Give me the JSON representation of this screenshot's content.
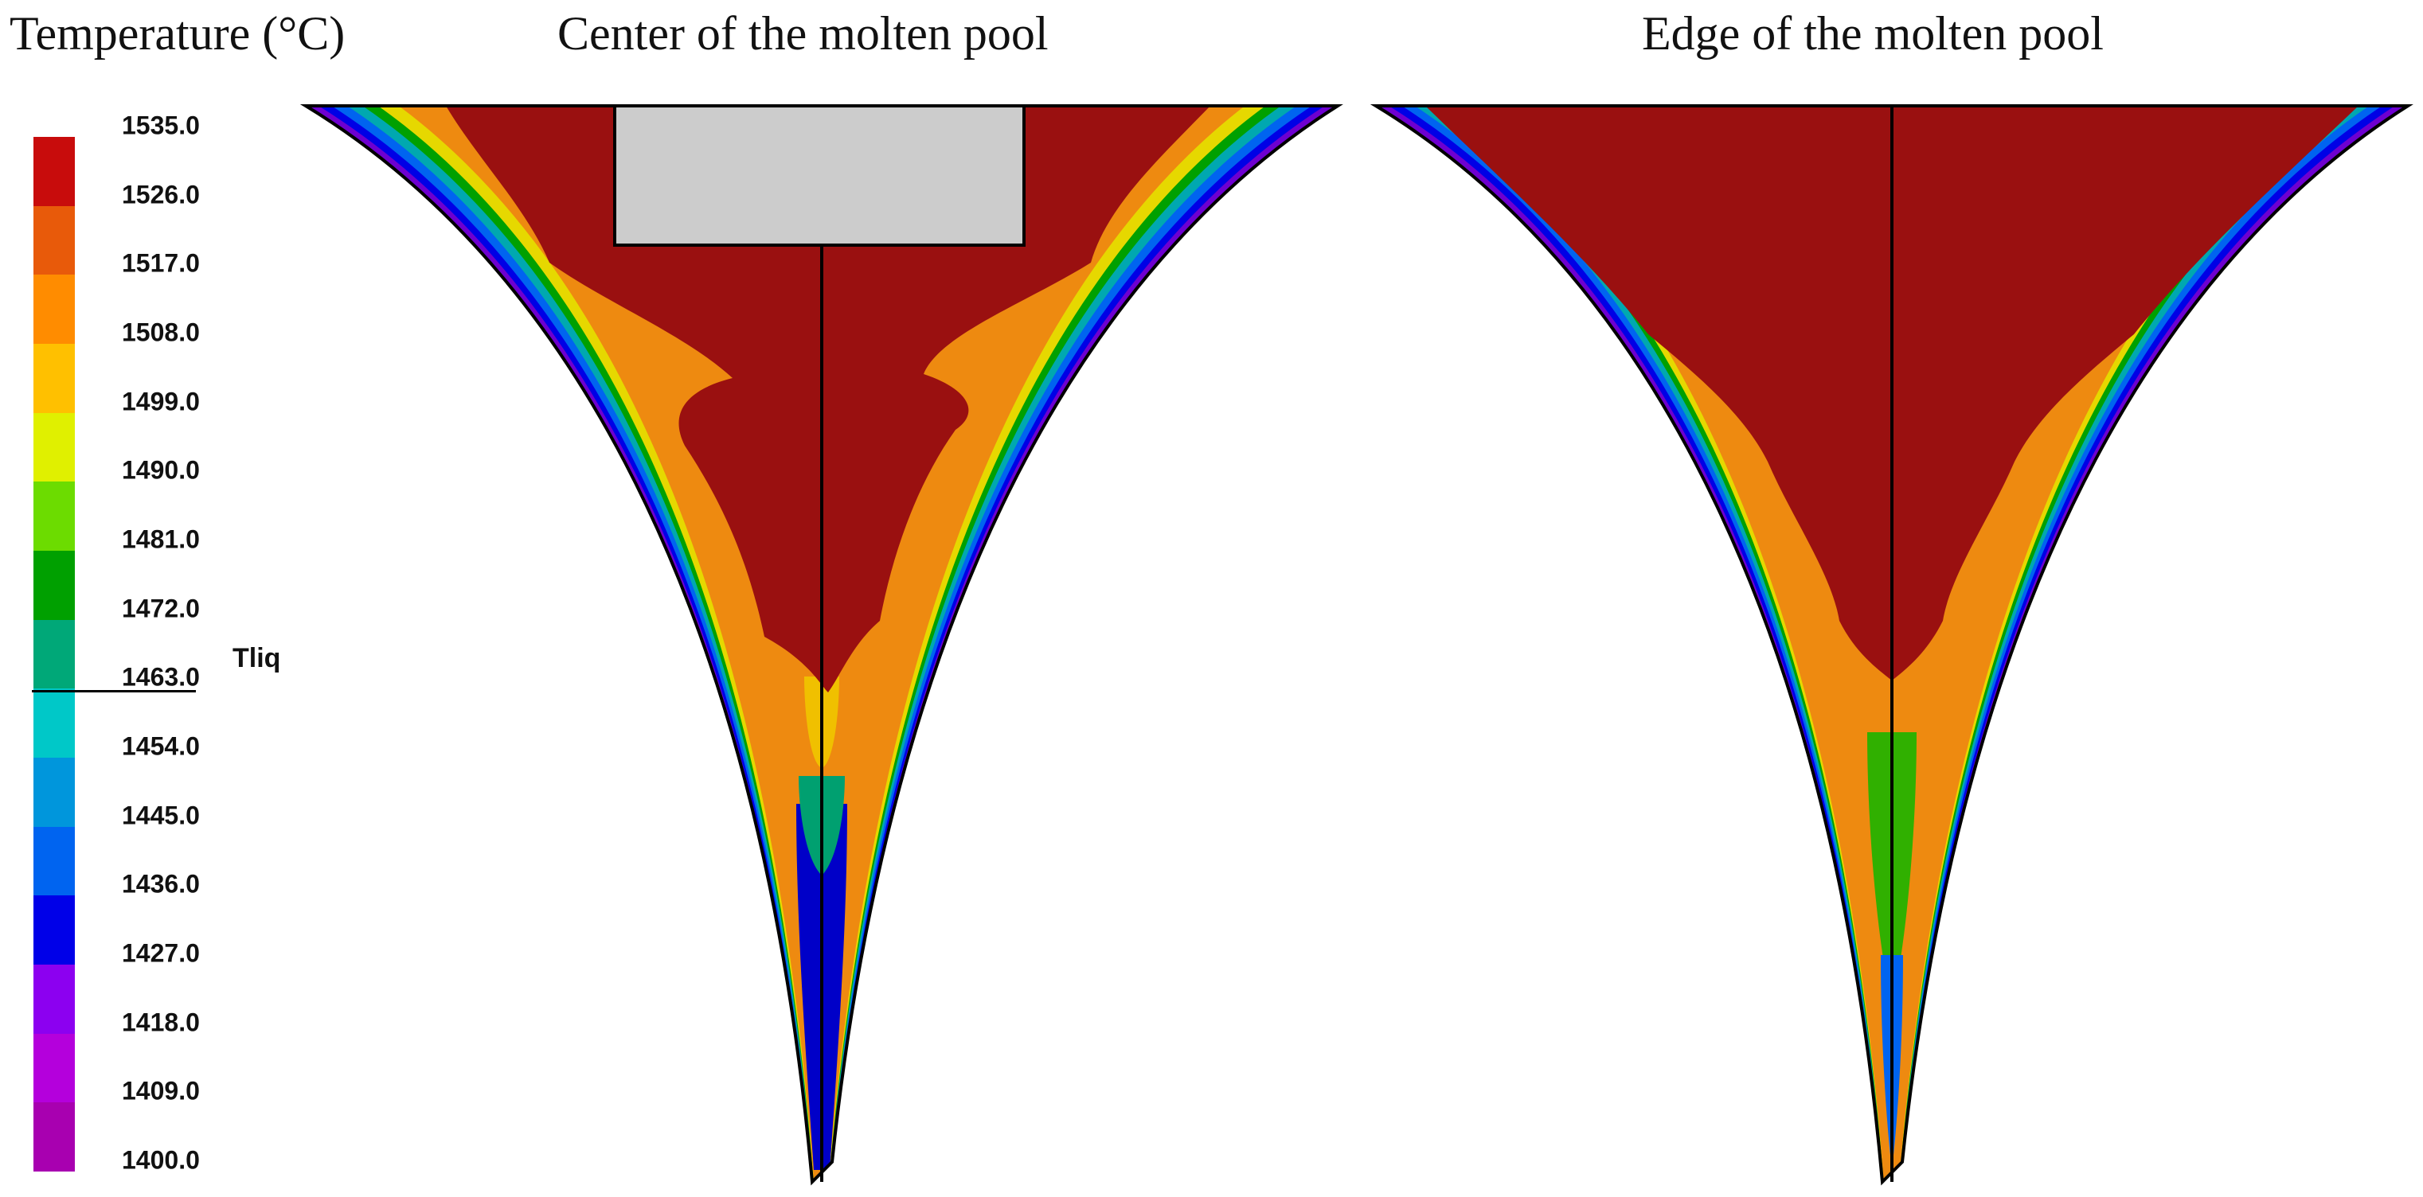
{
  "legend": {
    "title": "Temperature (°C)",
    "ticks": [
      "1535.0",
      "1526.0",
      "1517.0",
      "1508.0",
      "1499.0",
      "1490.0",
      "1481.0",
      "1472.0",
      "1463.0",
      "1454.0",
      "1445.0",
      "1436.0",
      "1427.0",
      "1418.0",
      "1409.0",
      "1400.0"
    ],
    "colors": [
      "#c80c0c",
      "#e85a0a",
      "#ff8c00",
      "#ffc000",
      "#e0f000",
      "#6cdc00",
      "#00a000",
      "#00a878",
      "#00c8c8",
      "#0096dc",
      "#0064f0",
      "#0000e8",
      "#8c00f0",
      "#b400dc",
      "#a800b0"
    ],
    "liquidus_label": "Tliq",
    "liquidus_value": "1463.0"
  },
  "panels": [
    {
      "title": "Center of the molten pool"
    },
    {
      "title": "Edge of the molten pool"
    }
  ],
  "render_colors": {
    "core_red": "#9a1010",
    "nozzle_gray": "#cccccc"
  }
}
